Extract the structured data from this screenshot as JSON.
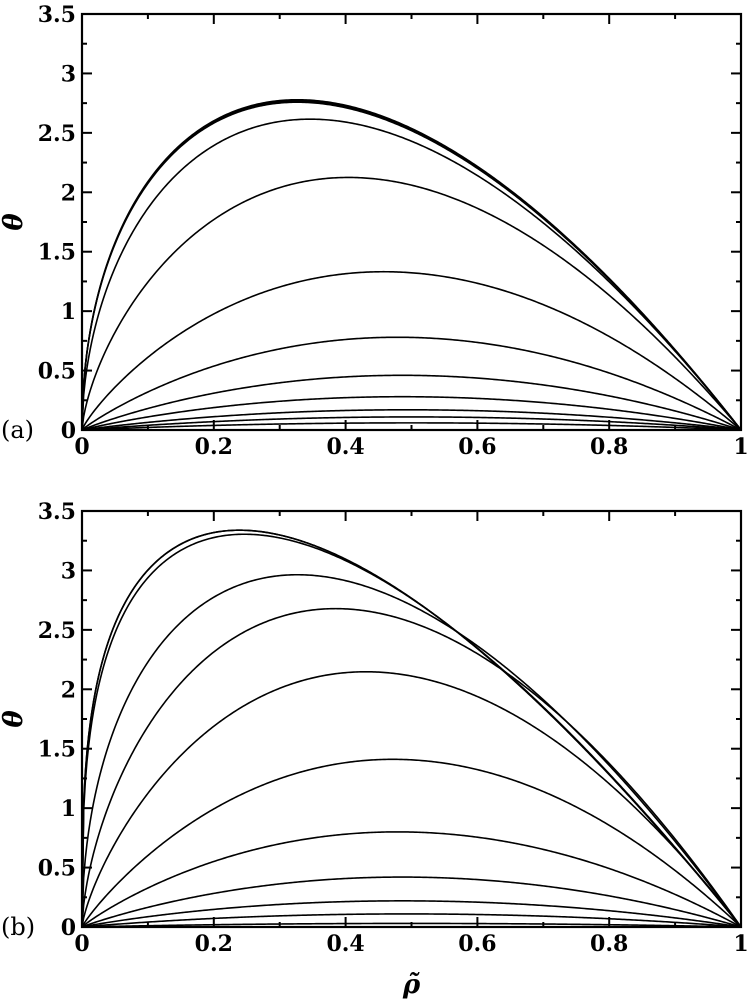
{
  "chart_data": [
    {
      "type": "line",
      "panel_label": "(a)",
      "xlabel": "",
      "ylabel": "θ",
      "xlim": [
        0,
        1
      ],
      "ylim": [
        0,
        3.5
      ],
      "xticks": [
        "0",
        "0.2",
        "0.4",
        "0.6",
        "0.8",
        "1"
      ],
      "yticks": [
        "0",
        "0.5",
        "1",
        "1.5",
        "2",
        "2.5",
        "3",
        "3.5"
      ],
      "grid": false,
      "series": [
        {
          "peak_x": 0.5,
          "peak_y": 0.06
        },
        {
          "peak_x": 0.5,
          "peak_y": 0.11
        },
        {
          "peak_x": 0.49,
          "peak_y": 0.17
        },
        {
          "peak_x": 0.48,
          "peak_y": 0.28
        },
        {
          "peak_x": 0.48,
          "peak_y": 0.46
        },
        {
          "peak_x": 0.47,
          "peak_y": 0.78
        },
        {
          "peak_x": 0.44,
          "peak_y": 1.33
        },
        {
          "peak_x": 0.36,
          "peak_y": 2.11
        },
        {
          "peak_x": 0.27,
          "peak_y": 2.56
        },
        {
          "peak_x": 0.24,
          "peak_y": 2.68
        },
        {
          "peak_x": 0.24,
          "peak_y": 2.69
        },
        {
          "peak_x": 0.24,
          "peak_y": 2.7
        }
      ]
    },
    {
      "type": "line",
      "panel_label": "(b)",
      "xlabel": "ρ̃",
      "ylabel": "θ",
      "xlim": [
        0,
        1
      ],
      "ylim": [
        0,
        3.5
      ],
      "xticks": [
        "0",
        "0.2",
        "0.4",
        "0.6",
        "0.8",
        "1"
      ],
      "yticks": [
        "0",
        "0.5",
        "1",
        "1.5",
        "2",
        "2.5",
        "3",
        "3.5"
      ],
      "grid": false,
      "series": [
        {
          "peak_x": 0.5,
          "peak_y": 0.03
        },
        {
          "peak_x": 0.49,
          "peak_y": 0.11
        },
        {
          "peak_x": 0.48,
          "peak_y": 0.22
        },
        {
          "peak_x": 0.48,
          "peak_y": 0.42
        },
        {
          "peak_x": 0.47,
          "peak_y": 0.8
        },
        {
          "peak_x": 0.46,
          "peak_y": 1.41
        },
        {
          "peak_x": 0.4,
          "peak_y": 2.14
        },
        {
          "peak_x": 0.33,
          "peak_y": 2.65
        },
        {
          "peak_x": 0.24,
          "peak_y": 2.88
        },
        {
          "peak_x": 0.12,
          "peak_y": 3.05
        },
        {
          "peak_x": 0.11,
          "peak_y": 3.06
        },
        {
          "peak_x": 0.11,
          "peak_y": 3.06
        }
      ]
    }
  ]
}
